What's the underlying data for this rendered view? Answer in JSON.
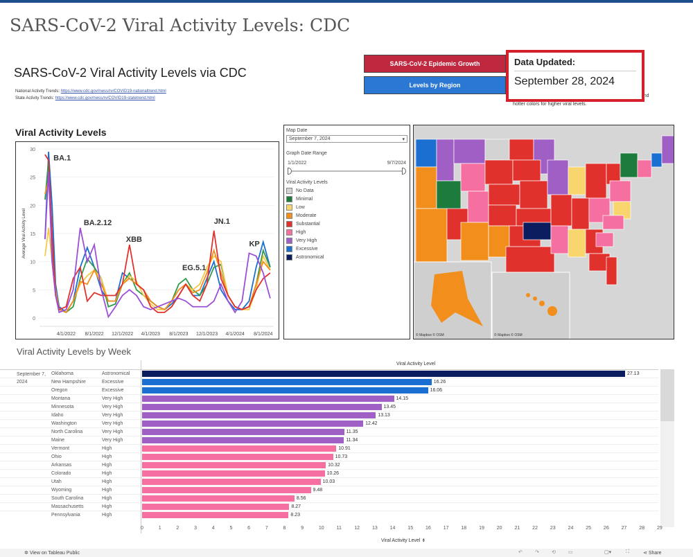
{
  "page_title": "SARS-CoV-2 Viral Activity Levels: CDC",
  "dashboard_title": "SARS-CoV-2 Viral Activity Levels via CDC",
  "links": [
    {
      "label": "National Activity Trends:",
      "url_text": "https://www.cdc.gov/nwss/rv/COVID19-nationaltrend.html"
    },
    {
      "label": "State Activity Trends:",
      "url_text": "https://www.cdc.gov/nwss/rv/COVID19-statetrend.html"
    }
  ],
  "buttons": {
    "epidemic": "SARS-CoV-2 Epidemic Growth",
    "region": "Levels by Region"
  },
  "updated": {
    "label": "Data Updated:",
    "value": "September 28, 2024"
  },
  "note": {
    "line1": "levels and",
    "line2": "hotter colors for higher viral levels."
  },
  "section_title": "Viral Activity Levels",
  "filters": {
    "map_date_label": "Map Date",
    "map_date": "September 7, 2024",
    "range_label": "Graph Date Range",
    "range_start": "1/1/2022",
    "range_end": "9/7/2024",
    "start_frac": 0,
    "end_frac": 1,
    "legend_title": "Viral Activity Levels",
    "legend": [
      {
        "label": "No Data",
        "color": "#d3d3d3"
      },
      {
        "label": "Minimal",
        "color": "#1e7b3e"
      },
      {
        "label": "Low",
        "color": "#f9d56e"
      },
      {
        "label": "Moderate",
        "color": "#f28e1c"
      },
      {
        "label": "Substantial",
        "color": "#e0312c"
      },
      {
        "label": "High",
        "color": "#f56fa1"
      },
      {
        "label": "Very High",
        "color": "#a05fc4"
      },
      {
        "label": "Excessive",
        "color": "#1a6fd1"
      },
      {
        "label": "Astronomical",
        "color": "#0b1d5e"
      }
    ]
  },
  "map": {
    "credit1": "© Mapbox  © OSM",
    "credit2": "© Mapbox  © OSM"
  },
  "chart_data": [
    {
      "type": "line",
      "ylabel": "Average Viral Activity Level",
      "ylim": [
        0,
        30
      ],
      "yticks": [
        "0",
        "5",
        "10",
        "15",
        "20",
        "25",
        "30"
      ],
      "xticks": [
        "4/1/2022",
        "8/1/2022",
        "12/1/2022",
        "4/1/2023",
        "8/1/2023",
        "12/1/2023",
        "4/1/2024",
        "8/1/2024"
      ],
      "x_note": "months since 1/1/2022",
      "xlim": [
        0,
        32.5
      ],
      "annotations": [
        {
          "text": "BA.1",
          "x": 1.2,
          "y": 28
        },
        {
          "text": "BA.2.12",
          "x": 5.5,
          "y": 16.5
        },
        {
          "text": "XBB",
          "x": 11.5,
          "y": 13.5
        },
        {
          "text": "EG.5.1",
          "x": 19.5,
          "y": 8.5
        },
        {
          "text": "JN.1",
          "x": 24,
          "y": 16.7
        },
        {
          "text": "KP",
          "x": 29,
          "y": 12.7
        }
      ],
      "series": [
        {
          "name": "Blue",
          "color": "#1a6fd1",
          "x": [
            0,
            0.5,
            1,
            1.5,
            2,
            3,
            4,
            5,
            6,
            7,
            8,
            9,
            10,
            11,
            12,
            13,
            14,
            15,
            16,
            17,
            18,
            19,
            20,
            21,
            22,
            23,
            24,
            25,
            26,
            27,
            28,
            29,
            30,
            31,
            32
          ],
          "y": [
            14,
            29.5,
            20,
            6,
            2,
            1,
            3,
            9,
            12.5,
            9,
            5,
            3,
            3,
            8,
            7,
            6,
            5,
            3,
            2,
            1.5,
            2.5,
            4,
            6,
            4,
            4,
            7,
            10,
            5,
            3,
            1.5,
            1.5,
            3,
            9,
            13.5,
            9
          ]
        },
        {
          "name": "Green",
          "color": "#2e9a4a",
          "x": [
            0,
            0.5,
            1,
            1.5,
            2,
            3,
            4,
            5,
            6,
            7,
            8,
            9,
            10,
            11,
            12,
            13,
            14,
            15,
            16,
            17,
            18,
            19,
            20,
            21,
            22,
            23,
            24,
            25,
            26,
            27,
            28,
            29,
            30,
            31,
            32
          ],
          "y": [
            21,
            28,
            12,
            5,
            1.5,
            1,
            2,
            7,
            10.5,
            9,
            7,
            2,
            2.5,
            6,
            8,
            5,
            4,
            3,
            2,
            1.5,
            3,
            6,
            7,
            5,
            4,
            6,
            9,
            9.5,
            4,
            2,
            1.5,
            2,
            6,
            12,
            9
          ]
        },
        {
          "name": "Yellow",
          "color": "#f4c84a",
          "x": [
            0,
            0.5,
            1,
            1.5,
            2,
            3,
            4,
            5,
            6,
            7,
            8,
            9,
            10,
            11,
            12,
            13,
            14,
            15,
            16,
            17,
            18,
            19,
            20,
            21,
            22,
            23,
            24,
            25,
            26,
            27,
            28,
            29,
            30,
            31,
            32
          ],
          "y": [
            11,
            16,
            10,
            4,
            1.5,
            1,
            3,
            6,
            7.5,
            8.5,
            7,
            3,
            3,
            6,
            7.5,
            6.5,
            4,
            2.5,
            1.5,
            1.5,
            3,
            5,
            6,
            5,
            6,
            9,
            11,
            10,
            4,
            2,
            1.5,
            1.5,
            5,
            11,
            8.5
          ]
        },
        {
          "name": "Orange",
          "color": "#f28e1c",
          "x": [
            0,
            0.5,
            1,
            1.5,
            2,
            3,
            4,
            5,
            6,
            7,
            8,
            9,
            10,
            11,
            12,
            13,
            14,
            15,
            16,
            17,
            18,
            19,
            20,
            21,
            22,
            23,
            24,
            25,
            26,
            27,
            28,
            29,
            30,
            31,
            32
          ],
          "y": [
            22,
            24.5,
            14,
            5,
            1.5,
            1,
            3,
            6.5,
            6,
            8.5,
            6,
            3,
            3,
            6,
            7,
            6,
            5,
            3,
            2,
            1.5,
            3,
            5,
            6,
            4.5,
            5,
            8,
            12,
            8,
            4,
            2,
            1.5,
            2,
            6,
            10,
            8.5
          ]
        },
        {
          "name": "Red",
          "color": "#e0312c",
          "x": [
            0,
            0.5,
            1,
            1.5,
            2,
            3,
            4,
            5,
            6,
            7,
            8,
            9,
            10,
            11,
            12,
            13,
            14,
            15,
            16,
            17,
            18,
            19,
            20,
            21,
            22,
            23,
            24,
            25,
            26,
            27,
            28,
            29,
            30,
            31,
            32
          ],
          "y": [
            29,
            28,
            15,
            4,
            1.5,
            2,
            7,
            9,
            3,
            4.5,
            4,
            4,
            4,
            6,
            13,
            6,
            5,
            2,
            1,
            1,
            2,
            4,
            6,
            4,
            3,
            6,
            15.5,
            7,
            4,
            2,
            1.5,
            2,
            5,
            7,
            8
          ]
        },
        {
          "name": "Purple",
          "color": "#9b4fd8",
          "x": [
            0,
            0.5,
            1,
            1.5,
            2,
            3,
            4,
            5,
            6,
            7,
            8,
            9,
            10,
            11,
            12,
            13,
            14,
            15,
            16,
            17,
            18,
            19,
            20,
            21,
            22,
            23,
            24,
            25,
            26,
            27,
            28,
            29,
            30,
            31,
            32
          ],
          "y": [
            14,
            26,
            10,
            4,
            1,
            1.5,
            5,
            16,
            10,
            13,
            5,
            0.2,
            2,
            4,
            5,
            4,
            2,
            1.5,
            2,
            2.5,
            3,
            3.5,
            3,
            2,
            2,
            2,
            3,
            6,
            3,
            1,
            3,
            11.5,
            11,
            8,
            3.5
          ]
        }
      ]
    },
    {
      "type": "bar",
      "title": "Viral Activity Levels by Week",
      "header": "Viral Activity Level",
      "xlabel": "Viral Activity Level",
      "xlim": [
        0,
        29
      ],
      "xticks": [
        "0",
        "1",
        "2",
        "3",
        "4",
        "5",
        "6",
        "7",
        "8",
        "9",
        "10",
        "11",
        "12",
        "13",
        "14",
        "15",
        "16",
        "17",
        "18",
        "19",
        "20",
        "21",
        "22",
        "23",
        "24",
        "25",
        "26",
        "27",
        "28",
        "29"
      ],
      "date": "September 7, 2024",
      "rows": [
        {
          "state": "Oklahoma",
          "level": "Astronomical",
          "value": 27.13,
          "color": "#0b1d5e"
        },
        {
          "state": "New Hampshire",
          "level": "Excessive",
          "value": 16.26,
          "color": "#1a6fd1"
        },
        {
          "state": "Oregon",
          "level": "Excessive",
          "value": 16.06,
          "color": "#1a6fd1"
        },
        {
          "state": "Montana",
          "level": "Very High",
          "value": 14.15,
          "color": "#a05fc4"
        },
        {
          "state": "Minnesota",
          "level": "Very High",
          "value": 13.45,
          "color": "#a05fc4"
        },
        {
          "state": "Idaho",
          "level": "Very High",
          "value": 13.13,
          "color": "#a05fc4"
        },
        {
          "state": "Washington",
          "level": "Very High",
          "value": 12.42,
          "color": "#a05fc4"
        },
        {
          "state": "North Carolina",
          "level": "Very High",
          "value": 11.35,
          "color": "#a05fc4"
        },
        {
          "state": "Maine",
          "level": "Very High",
          "value": 11.34,
          "color": "#a05fc4"
        },
        {
          "state": "Vermont",
          "level": "High",
          "value": 10.91,
          "color": "#f56fa1"
        },
        {
          "state": "Ohio",
          "level": "High",
          "value": 10.73,
          "color": "#f56fa1"
        },
        {
          "state": "Arkansas",
          "level": "High",
          "value": 10.32,
          "color": "#f56fa1"
        },
        {
          "state": "Colorado",
          "level": "High",
          "value": 10.26,
          "color": "#f56fa1"
        },
        {
          "state": "Utah",
          "level": "High",
          "value": 10.03,
          "color": "#f56fa1"
        },
        {
          "state": "Wyoming",
          "level": "High",
          "value": 9.48,
          "color": "#f56fa1"
        },
        {
          "state": "South Carolina",
          "level": "High",
          "value": 8.56,
          "color": "#f56fa1"
        },
        {
          "state": "Massachusetts",
          "level": "High",
          "value": 8.27,
          "color": "#f56fa1"
        },
        {
          "state": "Pennsylvania",
          "level": "High",
          "value": 8.23,
          "color": "#f56fa1"
        }
      ]
    }
  ],
  "toolbar": {
    "tableau": "View on Tableau Public",
    "share": "Share"
  }
}
